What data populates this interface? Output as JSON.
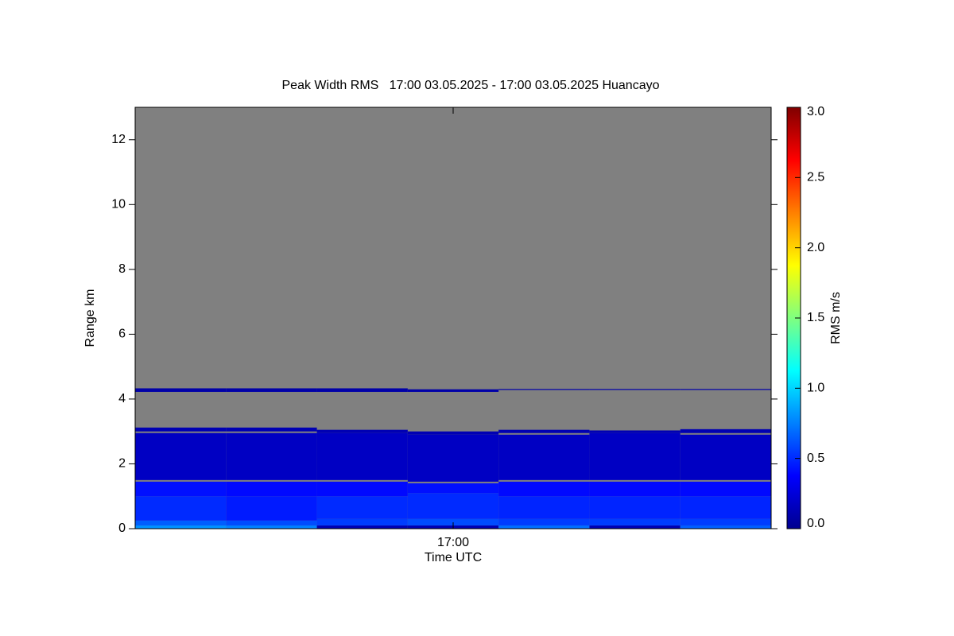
{
  "chart_data": {
    "type": "heatmap",
    "title": "Peak Width RMS   17:00 03.05.2025 - 17:00 03.05.2025 Huancayo",
    "xlabel": "Time UTC",
    "ylabel": "Range km",
    "xlim": [
      0,
      7
    ],
    "xticks": [
      {
        "value": 3.5,
        "label": "17:00"
      }
    ],
    "ylim": [
      0,
      13
    ],
    "yticks": [
      0,
      2,
      4,
      6,
      8,
      10,
      12
    ],
    "x": [
      0,
      1,
      2,
      3,
      4,
      5,
      6,
      7
    ],
    "columns": [
      {
        "bands": [
          {
            "y": [
              0,
              0.1
            ],
            "value": 0.8
          },
          {
            "y": [
              0.1,
              0.25
            ],
            "value": 0.65
          },
          {
            "y": [
              0.25,
              1.0
            ],
            "value": 0.5
          },
          {
            "y": [
              1.0,
              1.45
            ],
            "value": 0.42
          },
          {
            "y": [
              1.5,
              2.95
            ],
            "value": 0.2
          },
          {
            "y": [
              3.0,
              3.12
            ],
            "value": 0.15
          },
          {
            "y": [
              4.22,
              4.33
            ],
            "value": 0.12
          }
        ]
      },
      {
        "bands": [
          {
            "y": [
              0,
              0.1
            ],
            "value": 0.75
          },
          {
            "y": [
              0.1,
              0.25
            ],
            "value": 0.6
          },
          {
            "y": [
              0.25,
              1.0
            ],
            "value": 0.45
          },
          {
            "y": [
              1.0,
              1.45
            ],
            "value": 0.4
          },
          {
            "y": [
              1.5,
              2.95
            ],
            "value": 0.2
          },
          {
            "y": [
              3.0,
              3.12
            ],
            "value": 0.15
          },
          {
            "y": [
              4.22,
              4.33
            ],
            "value": 0.12
          }
        ]
      },
      {
        "bands": [
          {
            "y": [
              0,
              0.1
            ],
            "value": 0.15
          },
          {
            "y": [
              0.1,
              0.3
            ],
            "value": 0.55
          },
          {
            "y": [
              0.3,
              1.0
            ],
            "value": 0.5
          },
          {
            "y": [
              1.0,
              1.45
            ],
            "value": 0.4
          },
          {
            "y": [
              1.5,
              2.95
            ],
            "value": 0.2
          },
          {
            "y": [
              2.95,
              3.05
            ],
            "value": 0.15
          },
          {
            "y": [
              4.22,
              4.33
            ],
            "value": 0.12
          }
        ]
      },
      {
        "bands": [
          {
            "y": [
              0,
              0.1
            ],
            "value": 0.15
          },
          {
            "y": [
              0.1,
              0.3
            ],
            "value": 0.6
          },
          {
            "y": [
              0.3,
              1.1
            ],
            "value": 0.5
          },
          {
            "y": [
              1.1,
              1.4
            ],
            "value": 0.42
          },
          {
            "y": [
              1.45,
              2.9
            ],
            "value": 0.2
          },
          {
            "y": [
              2.9,
              3.0
            ],
            "value": 0.15
          },
          {
            "y": [
              4.22,
              4.3
            ],
            "value": 0.12
          }
        ]
      },
      {
        "bands": [
          {
            "y": [
              0,
              0.1
            ],
            "value": 0.7
          },
          {
            "y": [
              0.1,
              0.3
            ],
            "value": 0.55
          },
          {
            "y": [
              0.3,
              1.0
            ],
            "value": 0.48
          },
          {
            "y": [
              1.0,
              1.45
            ],
            "value": 0.4
          },
          {
            "y": [
              1.5,
              2.9
            ],
            "value": 0.2
          },
          {
            "y": [
              2.95,
              3.05
            ],
            "value": 0.15
          },
          {
            "y": [
              4.28,
              4.31
            ],
            "value": 0.12
          }
        ]
      },
      {
        "bands": [
          {
            "y": [
              0,
              0.1
            ],
            "value": 0.15
          },
          {
            "y": [
              0.1,
              0.3
            ],
            "value": 0.55
          },
          {
            "y": [
              0.3,
              1.0
            ],
            "value": 0.48
          },
          {
            "y": [
              1.0,
              1.45
            ],
            "value": 0.4
          },
          {
            "y": [
              1.5,
              2.95
            ],
            "value": 0.2
          },
          {
            "y": [
              2.95,
              3.03
            ],
            "value": 0.15
          },
          {
            "y": [
              4.28,
              4.31
            ],
            "value": 0.12
          }
        ]
      },
      {
        "bands": [
          {
            "y": [
              0,
              0.1
            ],
            "value": 0.65
          },
          {
            "y": [
              0.1,
              0.3
            ],
            "value": 0.55
          },
          {
            "y": [
              0.3,
              1.0
            ],
            "value": 0.48
          },
          {
            "y": [
              1.0,
              1.45
            ],
            "value": 0.4
          },
          {
            "y": [
              1.5,
              2.9
            ],
            "value": 0.2
          },
          {
            "y": [
              2.95,
              3.07
            ],
            "value": 0.15
          },
          {
            "y": [
              4.28,
              4.31
            ],
            "value": 0.12
          }
        ]
      }
    ],
    "colorbar": {
      "label": "RMS m/s",
      "lim": [
        0,
        3
      ],
      "ticks": [
        {
          "value": 0,
          "label": "0.0"
        },
        {
          "value": 0.5,
          "label": "0.5"
        },
        {
          "value": 1,
          "label": "1.0"
        },
        {
          "value": 1.5,
          "label": "1.5"
        },
        {
          "value": 2,
          "label": "2.0"
        },
        {
          "value": 2.5,
          "label": "2.5"
        },
        {
          "value": 3,
          "label": "3.0"
        }
      ]
    }
  }
}
